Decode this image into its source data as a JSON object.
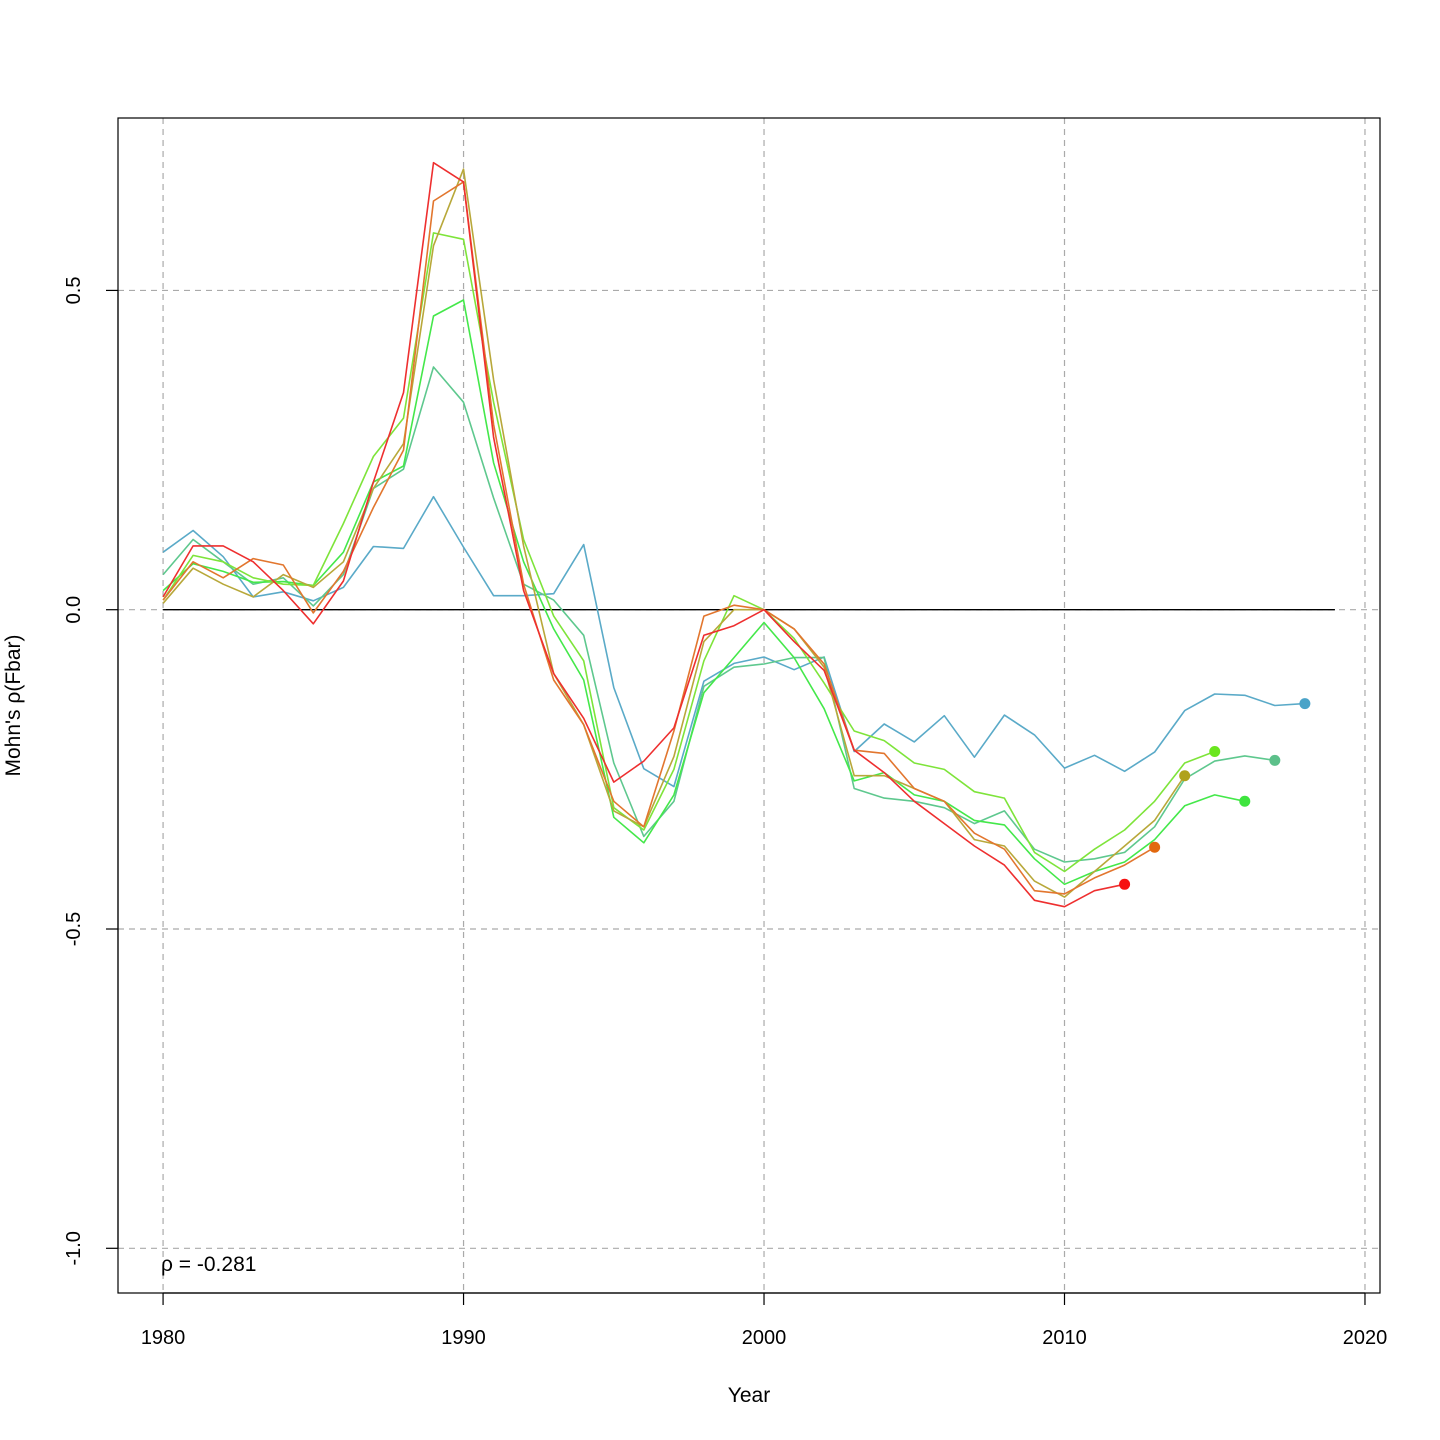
{
  "chart_data": {
    "type": "line",
    "title": "",
    "xlabel": "Year",
    "ylabel": "Mohn's ρ(Fbar)",
    "xlim": [
      1978.5,
      2020.5
    ],
    "ylim": [
      -1.07,
      0.77
    ],
    "x_ticks": [
      1980,
      1990,
      2000,
      2010,
      2020
    ],
    "y_ticks": [
      -1.0,
      -0.5,
      0.0,
      0.5
    ],
    "y_tick_labels": [
      "-1.0",
      "-0.5",
      "0.0",
      "0.5"
    ],
    "grid": true,
    "zero_line": {
      "y": 0,
      "x_from": 1980,
      "x_to": 2019
    },
    "annotation": "ρ = -0.281",
    "series": [
      {
        "color": "#5aaac8",
        "x": [
          1980,
          1981,
          1982,
          1983,
          1984,
          1985,
          1986,
          1987,
          1988,
          1989,
          1990,
          1991,
          1992,
          1993,
          1994,
          1995,
          1996,
          1997,
          1998,
          1999,
          2000,
          2001,
          2002,
          2003,
          2004,
          2005,
          2006,
          2007,
          2008,
          2009,
          2010,
          2011,
          2012,
          2013,
          2014,
          2015,
          2016,
          2017,
          2018
        ],
        "y": [
          0.09,
          0.124,
          0.083,
          0.02,
          0.028,
          0.014,
          0.035,
          0.099,
          0.096,
          0.177,
          0.098,
          0.022,
          0.022,
          0.025,
          0.102,
          -0.122,
          -0.249,
          -0.277,
          -0.112,
          -0.084,
          -0.074,
          -0.094,
          -0.074,
          -0.222,
          -0.179,
          -0.207,
          -0.166,
          -0.231,
          -0.165,
          -0.196,
          -0.248,
          -0.228,
          -0.253,
          -0.223,
          -0.158,
          -0.132,
          -0.134,
          -0.15,
          -0.147
        ]
      },
      {
        "color": "#5ec88e",
        "x": [
          1980,
          1981,
          1982,
          1983,
          1984,
          1985,
          1986,
          1987,
          1988,
          1989,
          1990,
          1991,
          1992,
          1993,
          1994,
          1995,
          1996,
          1997,
          1998,
          1999,
          2000,
          2001,
          2002,
          2003,
          2004,
          2005,
          2006,
          2007,
          2008,
          2009,
          2010,
          2011,
          2012,
          2013,
          2014,
          2015,
          2016,
          2017
        ],
        "y": [
          0.055,
          0.11,
          0.075,
          0.04,
          0.05,
          0.006,
          0.055,
          0.19,
          0.22,
          0.38,
          0.325,
          0.175,
          0.04,
          0.015,
          -0.04,
          -0.24,
          -0.355,
          -0.3,
          -0.12,
          -0.09,
          -0.085,
          -0.075,
          -0.075,
          -0.28,
          -0.295,
          -0.3,
          -0.31,
          -0.335,
          -0.315,
          -0.375,
          -0.395,
          -0.39,
          -0.38,
          -0.34,
          -0.265,
          -0.237,
          -0.229,
          -0.236
        ]
      },
      {
        "color": "#44e84a",
        "x": [
          1980,
          1981,
          1982,
          1983,
          1984,
          1985,
          1986,
          1987,
          1988,
          1989,
          1990,
          1991,
          1992,
          1993,
          1994,
          1995,
          1996,
          1997,
          1998,
          1999,
          2000,
          2001,
          2002,
          2003,
          2004,
          2005,
          2006,
          2007,
          2008,
          2009,
          2010,
          2011,
          2012,
          2013,
          2014,
          2015,
          2016
        ],
        "y": [
          0.03,
          0.072,
          0.06,
          0.043,
          0.044,
          0.038,
          0.09,
          0.2,
          0.225,
          0.46,
          0.485,
          0.23,
          0.075,
          -0.03,
          -0.11,
          -0.325,
          -0.365,
          -0.29,
          -0.13,
          -0.075,
          -0.02,
          -0.075,
          -0.155,
          -0.268,
          -0.255,
          -0.29,
          -0.3,
          -0.33,
          -0.337,
          -0.39,
          -0.43,
          -0.41,
          -0.395,
          -0.36,
          -0.307,
          -0.29,
          -0.3
        ]
      },
      {
        "color": "#7ee43a",
        "x": [
          1980,
          1981,
          1982,
          1983,
          1984,
          1985,
          1986,
          1987,
          1988,
          1989,
          1990,
          1991,
          1992,
          1993,
          1994,
          1995,
          1996,
          1997,
          1998,
          1999,
          2000,
          2001,
          2002,
          2003,
          2004,
          2005,
          2006,
          2007,
          2008,
          2009,
          2010,
          2011,
          2012,
          2013,
          2014,
          2015
        ],
        "y": [
          0.015,
          0.085,
          0.075,
          0.05,
          0.04,
          0.038,
          0.135,
          0.24,
          0.3,
          0.59,
          0.58,
          0.325,
          0.11,
          -0.01,
          -0.08,
          -0.31,
          -0.345,
          -0.25,
          -0.08,
          0.022,
          0.0,
          -0.045,
          -0.115,
          -0.19,
          -0.205,
          -0.24,
          -0.25,
          -0.285,
          -0.295,
          -0.38,
          -0.41,
          -0.375,
          -0.345,
          -0.3,
          -0.24,
          -0.222
        ]
      },
      {
        "color": "#b8a83a",
        "x": [
          1980,
          1981,
          1982,
          1983,
          1984,
          1985,
          1986,
          1987,
          1988,
          1989,
          1990,
          1991,
          1992,
          1993,
          1994,
          1995,
          1996,
          1997,
          1998,
          1999,
          2000,
          2001,
          2002,
          2003,
          2004,
          2005,
          2006,
          2007,
          2008,
          2009,
          2010,
          2011,
          2012,
          2013,
          2014
        ],
        "y": [
          0.01,
          0.065,
          0.04,
          0.02,
          0.055,
          0.035,
          0.075,
          0.19,
          0.26,
          0.57,
          0.69,
          0.36,
          0.1,
          -0.1,
          -0.18,
          -0.315,
          -0.34,
          -0.23,
          -0.05,
          0.0,
          0.0,
          -0.03,
          -0.09,
          -0.26,
          -0.26,
          -0.28,
          -0.3,
          -0.36,
          -0.37,
          -0.425,
          -0.45,
          -0.41,
          -0.37,
          -0.33,
          -0.26
        ]
      },
      {
        "color": "#e2762e",
        "x": [
          1980,
          1981,
          1982,
          1983,
          1984,
          1985,
          1986,
          1987,
          1988,
          1989,
          1990,
          1991,
          1992,
          1993,
          1994,
          1995,
          1996,
          1997,
          1998,
          1999,
          2000,
          2001,
          2002,
          2003,
          2004,
          2005,
          2006,
          2007,
          2008,
          2009,
          2010,
          2011,
          2012,
          2013
        ],
        "y": [
          0.015,
          0.075,
          0.05,
          0.08,
          0.07,
          -0.005,
          0.06,
          0.16,
          0.25,
          0.64,
          0.67,
          0.29,
          0.04,
          -0.11,
          -0.18,
          -0.3,
          -0.34,
          -0.19,
          -0.01,
          0.007,
          0.0,
          -0.03,
          -0.085,
          -0.22,
          -0.225,
          -0.28,
          -0.3,
          -0.35,
          -0.375,
          -0.44,
          -0.445,
          -0.42,
          -0.4,
          -0.372
        ]
      },
      {
        "color": "#ee2f2f",
        "x": [
          1980,
          1981,
          1982,
          1983,
          1984,
          1985,
          1986,
          1987,
          1988,
          1989,
          1990,
          1991,
          1992,
          1993,
          1994,
          1995,
          1996,
          1997,
          1998,
          1999,
          2000,
          2001,
          2002,
          2003,
          2004,
          2005,
          2006,
          2007,
          2008,
          2009,
          2010,
          2011,
          2012
        ],
        "y": [
          0.02,
          0.1,
          0.1,
          0.075,
          0.03,
          -0.022,
          0.045,
          0.2,
          0.34,
          0.7,
          0.67,
          0.27,
          0.03,
          -0.1,
          -0.17,
          -0.27,
          -0.237,
          -0.185,
          -0.04,
          -0.025,
          0.0,
          -0.05,
          -0.095,
          -0.22,
          -0.255,
          -0.3,
          -0.335,
          -0.37,
          -0.4,
          -0.455,
          -0.465,
          -0.44,
          -0.43
        ]
      }
    ],
    "endpoints": [
      {
        "x": 2018,
        "y": -0.147,
        "color": "#4aa3c8"
      },
      {
        "x": 2017,
        "y": -0.236,
        "color": "#5cc08a"
      },
      {
        "x": 2016,
        "y": -0.3,
        "color": "#3ee43e"
      },
      {
        "x": 2015,
        "y": -0.222,
        "color": "#6ae61e"
      },
      {
        "x": 2014,
        "y": -0.26,
        "color": "#b0a21c"
      },
      {
        "x": 2013,
        "y": -0.372,
        "color": "#e2680e"
      },
      {
        "x": 2012,
        "y": -0.43,
        "color": "#f61010"
      }
    ]
  }
}
